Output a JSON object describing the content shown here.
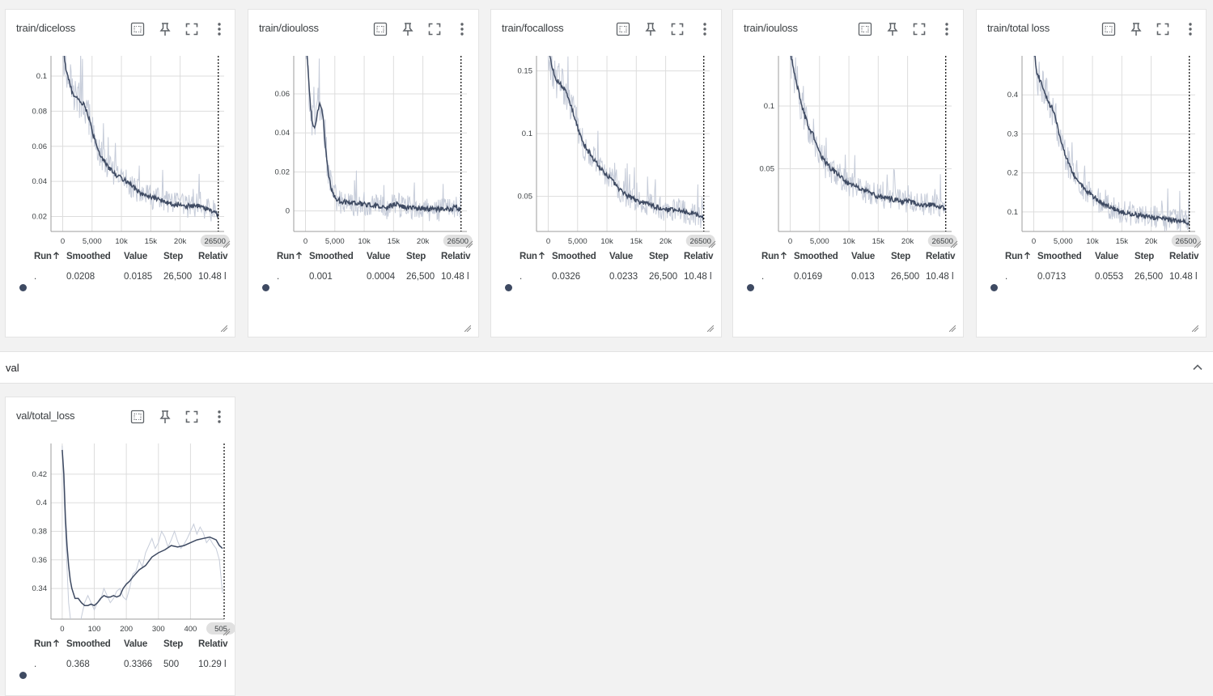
{
  "section": {
    "title": "val",
    "chevron_icon": "chevron-up-icon"
  },
  "table_headers": {
    "run": "Run",
    "run_sort_icon": "arrow-up-icon",
    "smoothed": "Smoothed",
    "value": "Value",
    "step": "Step",
    "relative": "Relativ"
  },
  "toolbar_icons": [
    "fit-domain-icon",
    "pin-icon",
    "fullscreen-icon",
    "more-vert-icon"
  ],
  "colors": {
    "smoothed_line": "#3e4a62",
    "raw_line": "#c6ccd9",
    "grid": "#dddddd",
    "cursor": "#000000"
  },
  "cards": [
    {
      "title": "train/diceloss",
      "row": {
        "run": ".",
        "smoothed": "0.0208",
        "value": "0.0185",
        "step": "26,500",
        "relative": "10.48 l"
      },
      "chart_data": {
        "type": "line",
        "title": "",
        "xlabel": "",
        "ylabel": "",
        "xlim": [
          -2000,
          27500
        ],
        "ylim": [
          0.0115,
          0.1115
        ],
        "xticks": [
          0,
          5000,
          10000,
          15000,
          20000
        ],
        "xtick_labels": [
          "0",
          "5,000",
          "10k",
          "15k",
          "20k"
        ],
        "yticks": [
          0.02,
          0.04,
          0.06,
          0.08,
          0.1
        ],
        "ytick_labels": [
          "0.02",
          "0.04",
          "0.06",
          "0.08",
          "0.1"
        ],
        "cursor_step": 26500,
        "cursor_label": "26500",
        "series": [
          {
            "role": "smoothed",
            "x": [
              0,
              500,
              1000,
              1500,
              2000,
              2500,
              3000,
              3500,
              4000,
              4500,
              5000,
              6000,
              7000,
              8000,
              9000,
              10000,
              11000,
              12000,
              13000,
              14000,
              15000,
              16000,
              17000,
              18000,
              19000,
              20000,
              21000,
              22000,
              23000,
              24000,
              25000,
              26000,
              26500
            ],
            "y": [
              0.118,
              0.105,
              0.098,
              0.092,
              0.089,
              0.087,
              0.086,
              0.084,
              0.081,
              0.076,
              0.068,
              0.058,
              0.052,
              0.047,
              0.044,
              0.042,
              0.04,
              0.037,
              0.034,
              0.032,
              0.031,
              0.03,
              0.029,
              0.028,
              0.027,
              0.027,
              0.026,
              0.026,
              0.026,
              0.025,
              0.024,
              0.022,
              0.0208
            ]
          }
        ]
      }
    },
    {
      "title": "train/diouloss",
      "row": {
        "run": ".",
        "smoothed": "0.001",
        "value": "0.0004",
        "step": "26,500",
        "relative": "10.48 l"
      },
      "chart_data": {
        "type": "line",
        "title": "",
        "xlabel": "",
        "ylabel": "",
        "xlim": [
          -2000,
          27500
        ],
        "ylim": [
          -0.0105,
          0.0795
        ],
        "xticks": [
          0,
          5000,
          10000,
          15000,
          20000
        ],
        "xtick_labels": [
          "0",
          "5,000",
          "10k",
          "15k",
          "20k"
        ],
        "yticks": [
          0,
          0.02,
          0.04,
          0.06
        ],
        "ytick_labels": [
          "0",
          "0.02",
          "0.04",
          "0.06"
        ],
        "cursor_step": 26500,
        "cursor_label": "26500",
        "series": [
          {
            "role": "smoothed",
            "x": [
              0,
              400,
              800,
              1200,
              1600,
              2000,
              2500,
              3000,
              3500,
              4000,
              4500,
              5000,
              6000,
              7000,
              8000,
              9000,
              10000,
              11000,
              12000,
              13000,
              14000,
              15000,
              15500,
              16000,
              17000,
              18000,
              19000,
              20000,
              21000,
              22000,
              23000,
              24000,
              25000,
              25500,
              26000,
              26500
            ],
            "y": [
              0.09,
              0.075,
              0.055,
              0.045,
              0.042,
              0.05,
              0.056,
              0.048,
              0.03,
              0.018,
              0.01,
              0.007,
              0.005,
              0.0045,
              0.004,
              0.0038,
              0.0035,
              0.003,
              0.0025,
              0.0022,
              0.002,
              0.003,
              0.004,
              0.0025,
              0.0018,
              0.0015,
              0.0012,
              0.0012,
              0.0011,
              0.0011,
              0.001,
              0.001,
              0.0012,
              0.0025,
              0.0015,
              0.001
            ]
          }
        ]
      }
    },
    {
      "title": "train/focalloss",
      "row": {
        "run": ".",
        "smoothed": "0.0326",
        "value": "0.0233",
        "step": "26,500",
        "relative": "10.48 l"
      },
      "chart_data": {
        "type": "line",
        "title": "",
        "xlabel": "",
        "ylabel": "",
        "xlim": [
          -2000,
          27500
        ],
        "ylim": [
          0.022,
          0.162
        ],
        "xticks": [
          0,
          5000,
          10000,
          15000,
          20000
        ],
        "xtick_labels": [
          "0",
          "5,000",
          "10k",
          "15k",
          "20k"
        ],
        "yticks": [
          0.05,
          0.1,
          0.15
        ],
        "ytick_labels": [
          "0.05",
          "0.1",
          "0.15"
        ],
        "cursor_step": 26500,
        "cursor_label": "26500",
        "series": [
          {
            "role": "smoothed",
            "x": [
              0,
              500,
              1000,
              1500,
              2000,
              2500,
              3000,
              3500,
              4000,
              4500,
              5000,
              6000,
              7000,
              8000,
              9000,
              10000,
              11000,
              12000,
              13000,
              14000,
              15000,
              16000,
              17000,
              18000,
              19000,
              20000,
              21000,
              22000,
              23000,
              24000,
              25000,
              26000,
              26500
            ],
            "y": [
              0.17,
              0.155,
              0.148,
              0.142,
              0.14,
              0.137,
              0.133,
              0.128,
              0.12,
              0.113,
              0.105,
              0.092,
              0.085,
              0.078,
              0.072,
              0.067,
              0.062,
              0.056,
              0.052,
              0.049,
              0.047,
              0.045,
              0.044,
              0.042,
              0.041,
              0.04,
              0.039,
              0.039,
              0.038,
              0.037,
              0.036,
              0.034,
              0.0326
            ]
          }
        ]
      }
    },
    {
      "title": "train/iouloss",
      "row": {
        "run": ".",
        "smoothed": "0.0169",
        "value": "0.013",
        "step": "26,500",
        "relative": "10.48 l"
      },
      "chart_data": {
        "type": "line",
        "title": "",
        "xlabel": "",
        "ylabel": "",
        "xlim": [
          -2000,
          27500
        ],
        "ylim": [
          0.0,
          0.14
        ],
        "xticks": [
          0,
          5000,
          10000,
          15000,
          20000
        ],
        "xtick_labels": [
          "0",
          "5,000",
          "10k",
          "15k",
          "20k"
        ],
        "yticks": [
          0.05,
          0.1
        ],
        "ytick_labels": [
          "0.05",
          "0.1"
        ],
        "cursor_step": 26500,
        "cursor_label": "26500",
        "series": [
          {
            "role": "smoothed",
            "x": [
              0,
              500,
              1000,
              1500,
              2000,
              2500,
              3000,
              3500,
              4000,
              4500,
              5000,
              6000,
              7000,
              8000,
              9000,
              10000,
              11000,
              12000,
              13000,
              14000,
              15000,
              16000,
              17000,
              18000,
              19000,
              20000,
              21000,
              22000,
              23000,
              24000,
              25000,
              26000,
              26500
            ],
            "y": [
              0.145,
              0.13,
              0.12,
              0.11,
              0.1,
              0.092,
              0.085,
              0.08,
              0.076,
              0.07,
              0.062,
              0.055,
              0.05,
              0.046,
              0.042,
              0.038,
              0.036,
              0.034,
              0.032,
              0.03,
              0.028,
              0.027,
              0.026,
              0.025,
              0.024,
              0.024,
              0.023,
              0.022,
              0.021,
              0.021,
              0.02,
              0.019,
              0.0169
            ]
          }
        ]
      }
    },
    {
      "title": "train/total loss",
      "row": {
        "run": ".",
        "smoothed": "0.0713",
        "value": "0.0553",
        "step": "26,500",
        "relative": "10.48 l"
      },
      "chart_data": {
        "type": "line",
        "title": "",
        "xlabel": "",
        "ylabel": "",
        "xlim": [
          -2000,
          27500
        ],
        "ylim": [
          0.05,
          0.5
        ],
        "xticks": [
          0,
          5000,
          10000,
          15000,
          20000
        ],
        "xtick_labels": [
          "0",
          "5,000",
          "10k",
          "15k",
          "20k"
        ],
        "yticks": [
          0.1,
          0.2,
          0.3,
          0.4
        ],
        "ytick_labels": [
          "0.1",
          "0.2",
          "0.3",
          "0.4"
        ],
        "cursor_step": 26500,
        "cursor_label": "26500",
        "series": [
          {
            "role": "smoothed",
            "x": [
              0,
              500,
              1000,
              1500,
              2000,
              2500,
              3000,
              3500,
              4000,
              4500,
              5000,
              6000,
              7000,
              8000,
              9000,
              10000,
              11000,
              12000,
              13000,
              14000,
              15000,
              16000,
              17000,
              18000,
              19000,
              20000,
              21000,
              22000,
              23000,
              24000,
              25000,
              26000,
              26500
            ],
            "y": [
              0.52,
              0.46,
              0.44,
              0.42,
              0.4,
              0.38,
              0.37,
              0.35,
              0.32,
              0.29,
              0.26,
              0.22,
              0.19,
              0.17,
              0.155,
              0.14,
              0.13,
              0.12,
              0.112,
              0.105,
              0.1,
              0.097,
              0.094,
              0.091,
              0.088,
              0.086,
              0.084,
              0.082,
              0.08,
              0.078,
              0.076,
              0.074,
              0.0713
            ]
          }
        ]
      }
    },
    {
      "title": "val/total_loss",
      "row": {
        "run": ".",
        "smoothed": "0.368",
        "value": "0.3366",
        "step": "500",
        "relative": "10.29 l"
      },
      "chart_data": {
        "type": "line",
        "title": "",
        "xlabel": "",
        "ylabel": "",
        "xlim": [
          -35,
          505
        ],
        "ylim": [
          0.3185,
          0.4415
        ],
        "xticks": [
          0,
          100,
          200,
          300,
          400
        ],
        "xtick_labels": [
          "0",
          "100",
          "200",
          "300",
          "400"
        ],
        "yticks": [
          0.34,
          0.36,
          0.38,
          0.4,
          0.42
        ],
        "ytick_labels": [
          "0.34",
          "0.36",
          "0.38",
          "0.4",
          "0.42"
        ],
        "cursor_step": 505,
        "cursor_label": "505",
        "series": [
          {
            "role": "raw",
            "x": [
              0,
              10,
              20,
              30,
              40,
              50,
              60,
              70,
              80,
              90,
              100,
              110,
              120,
              130,
              140,
              150,
              160,
              170,
              180,
              190,
              200,
              210,
              220,
              230,
              240,
              250,
              260,
              270,
              280,
              290,
              300,
              310,
              320,
              330,
              340,
              350,
              360,
              370,
              380,
              390,
              400,
              410,
              420,
              430,
              440,
              450,
              460,
              470,
              480,
              490,
              500
            ],
            "y": [
              0.44,
              0.38,
              0.33,
              0.31,
              0.3,
              0.3,
              0.32,
              0.33,
              0.335,
              0.33,
              0.325,
              0.33,
              0.332,
              0.34,
              0.335,
              0.33,
              0.333,
              0.338,
              0.34,
              0.334,
              0.332,
              0.34,
              0.35,
              0.352,
              0.36,
              0.355,
              0.365,
              0.37,
              0.375,
              0.368,
              0.372,
              0.38,
              0.376,
              0.369,
              0.374,
              0.38,
              0.373,
              0.368,
              0.371,
              0.375,
              0.38,
              0.385,
              0.378,
              0.383,
              0.379,
              0.372,
              0.375,
              0.371,
              0.368,
              0.36,
              0.3366
            ]
          },
          {
            "role": "smoothed",
            "x": [
              0,
              5,
              10,
              15,
              20,
              25,
              30,
              40,
              50,
              60,
              70,
              80,
              90,
              100,
              110,
              120,
              130,
              140,
              150,
              160,
              170,
              180,
              190,
              200,
              210,
              220,
              240,
              260,
              280,
              300,
              320,
              340,
              360,
              380,
              400,
              420,
              440,
              460,
              480,
              490,
              500
            ],
            "y": [
              0.437,
              0.42,
              0.39,
              0.37,
              0.356,
              0.346,
              0.34,
              0.333,
              0.333,
              0.33,
              0.328,
              0.328,
              0.329,
              0.328,
              0.33,
              0.333,
              0.335,
              0.334,
              0.334,
              0.335,
              0.334,
              0.335,
              0.34,
              0.343,
              0.345,
              0.348,
              0.353,
              0.356,
              0.362,
              0.365,
              0.367,
              0.37,
              0.369,
              0.37,
              0.372,
              0.374,
              0.375,
              0.376,
              0.374,
              0.37,
              0.368
            ]
          }
        ]
      }
    }
  ]
}
